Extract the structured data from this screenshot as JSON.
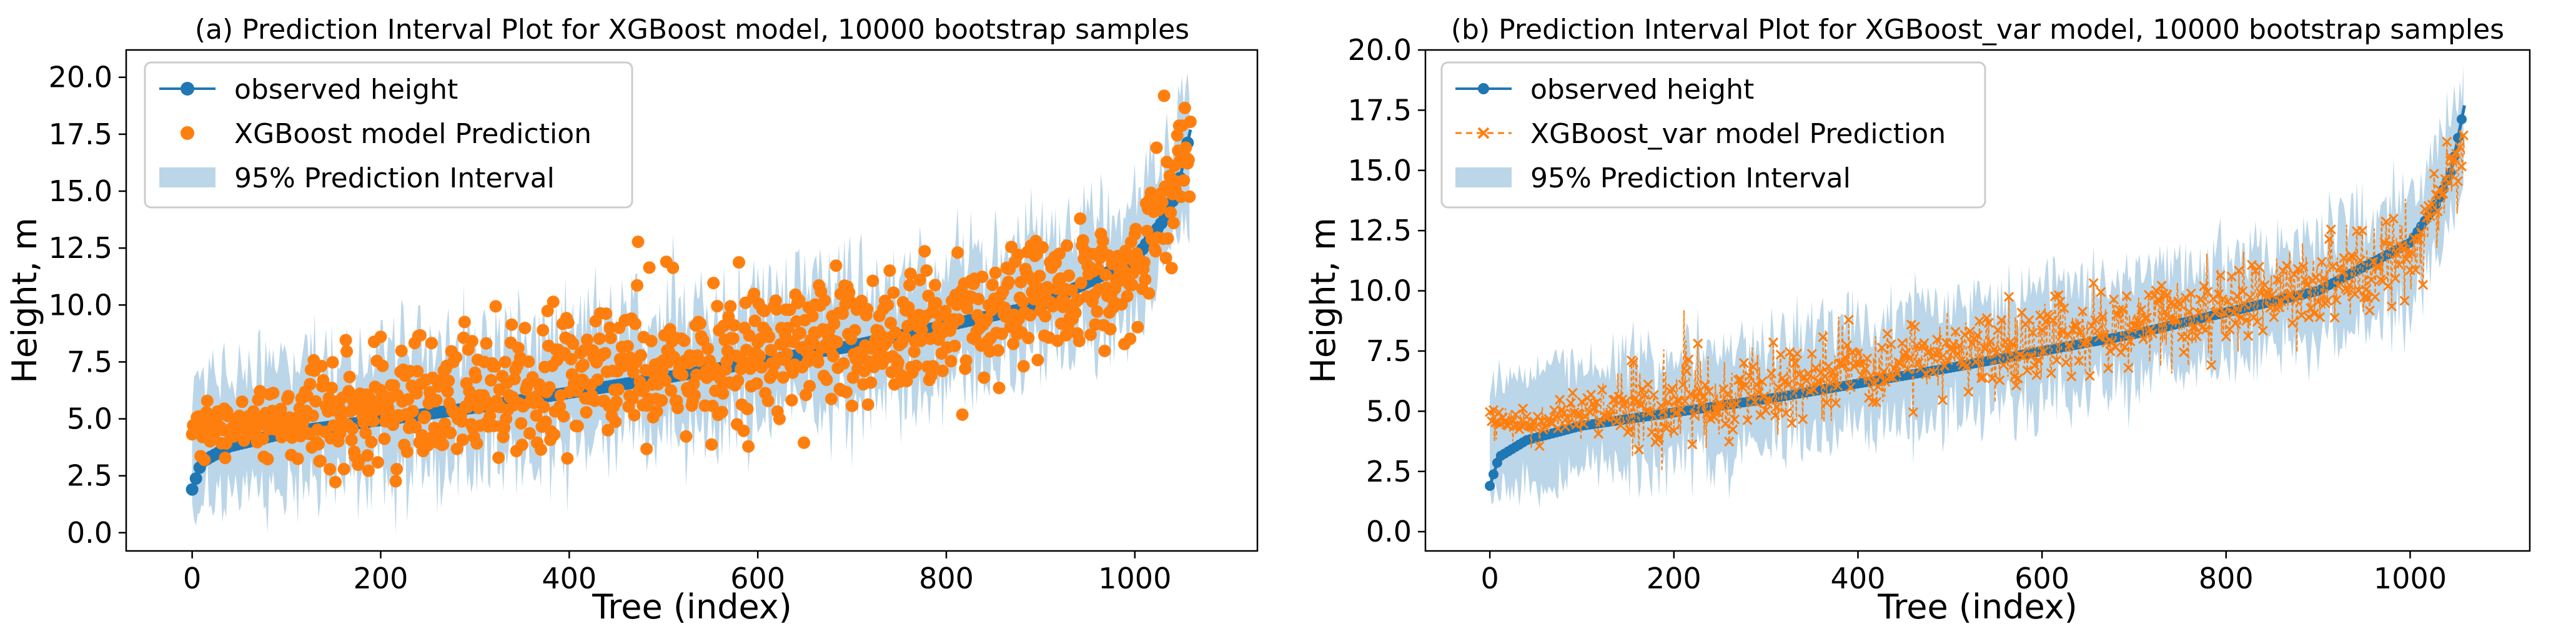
{
  "chart_data": [
    {
      "type": "scatter",
      "title": "(a) Prediction Interval Plot for XGBoost model, 10000 bootstrap samples",
      "xlabel": "Tree (index)",
      "ylabel": "Height, m",
      "xlim": [
        -70,
        1130
      ],
      "ylim": [
        -0.8,
        21.2
      ],
      "xticks": [
        0,
        200,
        400,
        600,
        800,
        1000
      ],
      "yticks": [
        0.0,
        2.5,
        5.0,
        7.5,
        10.0,
        12.5,
        15.0,
        17.5,
        20.0
      ],
      "n_points": 1060,
      "legend_position": "top-left",
      "legend": [
        "observed height",
        "XGBoost model Prediction",
        "95% Prediction Interval"
      ],
      "observed_height_profile": {
        "x": [
          0,
          10,
          40,
          100,
          300,
          500,
          700,
          900,
          1000,
          1030,
          1045,
          1059
        ],
        "y": [
          1.9,
          3.1,
          3.8,
          4.4,
          5.5,
          6.8,
          8.2,
          10.0,
          12.0,
          13.7,
          15.0,
          17.7
        ]
      },
      "prediction_profile": {
        "x": [
          0,
          100,
          200,
          400,
          600,
          800,
          1000,
          1059
        ],
        "y": [
          4.4,
          4.9,
          5.4,
          6.7,
          8.0,
          9.3,
          11.3,
          17.0
        ],
        "scatter_sd": 1.5
      },
      "interval_halfwidth_m": 2.6,
      "colors": {
        "observed": "#1f77b4",
        "prediction": "#ff7f0e",
        "interval": "#1f77b4"
      }
    },
    {
      "type": "scatter",
      "title": "(b) Prediction Interval Plot for XGBoost_var model, 10000 bootstrap samples",
      "xlabel": "Tree (index)",
      "ylabel": "Height, m",
      "xlim": [
        -70,
        1130
      ],
      "ylim": [
        -0.8,
        20.0
      ],
      "xticks": [
        0,
        200,
        400,
        600,
        800,
        1000
      ],
      "yticks": [
        0.0,
        2.5,
        5.0,
        7.5,
        10.0,
        12.5,
        15.0,
        17.5,
        20.0
      ],
      "n_points": 1060,
      "legend_position": "top-left",
      "legend": [
        "observed height",
        "XGBoost_var model Prediction",
        "95% Prediction Interval"
      ],
      "observed_height_profile": {
        "x": [
          0,
          10,
          40,
          100,
          300,
          500,
          700,
          900,
          1000,
          1030,
          1045,
          1059
        ],
        "y": [
          1.9,
          3.1,
          3.8,
          4.4,
          5.5,
          6.8,
          8.2,
          10.0,
          12.0,
          13.7,
          15.0,
          17.7
        ]
      },
      "prediction_profile": {
        "x": [
          0,
          100,
          200,
          400,
          600,
          800,
          1000,
          1059
        ],
        "y": [
          4.4,
          4.8,
          5.3,
          6.6,
          8.0,
          9.4,
          11.5,
          16.0
        ],
        "scatter_sd": 0.9
      },
      "interval_halfwidth_m": 2.2,
      "colors": {
        "observed": "#1f77b4",
        "prediction": "#ff7f0e",
        "interval": "#1f77b4"
      }
    }
  ]
}
